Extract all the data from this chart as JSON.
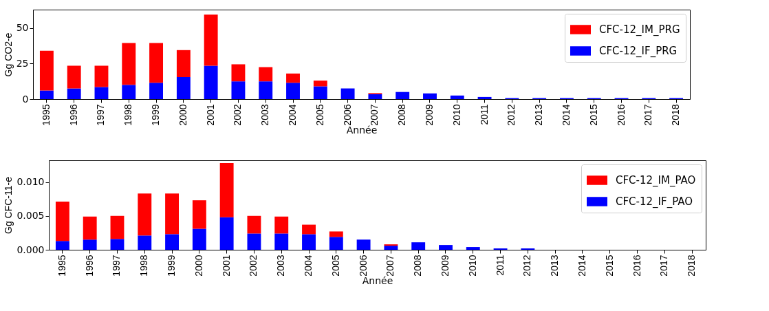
{
  "chart_data": [
    {
      "type": "bar",
      "stacked": true,
      "ylabel": "Gg CO2-e",
      "xlabel": "Année",
      "categories": [
        "1995",
        "1996",
        "1997",
        "1998",
        "1999",
        "2000",
        "2001",
        "2002",
        "2003",
        "2004",
        "2005",
        "2006",
        "2007",
        "2008",
        "2009",
        "2010",
        "2011",
        "2012",
        "2013",
        "2014",
        "2015",
        "2016",
        "2017",
        "2018"
      ],
      "series": [
        {
          "name": "CFC-12_IF_PRG",
          "color": "#0000ff",
          "values": [
            6,
            7.5,
            8.5,
            10,
            11.5,
            15.5,
            23.5,
            12.5,
            12.5,
            11.5,
            9,
            7.5,
            3.5,
            5,
            4,
            2.5,
            1.5,
            0.7,
            0.7,
            0.7,
            0.7,
            0.7,
            0.7,
            0.7
          ]
        },
        {
          "name": "CFC-12_IM_PRG",
          "color": "#ff0000",
          "values": [
            28,
            16,
            15,
            29.5,
            28,
            19,
            36,
            12,
            10,
            6.5,
            4,
            0,
            0.7,
            0,
            0,
            0,
            0,
            0,
            0,
            0,
            0,
            0,
            0,
            0
          ]
        }
      ],
      "ylim": [
        0,
        63
      ],
      "yticks": [
        0,
        25,
        50
      ],
      "grid": false,
      "legend": "top right"
    },
    {
      "type": "bar",
      "stacked": true,
      "ylabel": "Gg CFC-11-e",
      "xlabel": "Année",
      "categories": [
        "1995",
        "1996",
        "1997",
        "1998",
        "1999",
        "2000",
        "2001",
        "2002",
        "2003",
        "2004",
        "2005",
        "2006",
        "2007",
        "2008",
        "2009",
        "2010",
        "2011",
        "2012",
        "2013",
        "2014",
        "2015",
        "2016",
        "2017",
        "2018"
      ],
      "series": [
        {
          "name": "CFC-12_IF_PAO",
          "color": "#0000ff",
          "values": [
            0.0013,
            0.0015,
            0.0016,
            0.0021,
            0.0023,
            0.0031,
            0.0048,
            0.0024,
            0.0024,
            0.0023,
            0.0019,
            0.0015,
            0.0006,
            0.0011,
            0.0007,
            0.0004,
            0.0002,
            0.0002,
            0,
            0,
            0,
            0,
            0,
            0
          ]
        },
        {
          "name": "CFC-12_IM_PAO",
          "color": "#ff0000",
          "values": [
            0.0058,
            0.0034,
            0.0034,
            0.0062,
            0.006,
            0.0042,
            0.008,
            0.0026,
            0.0025,
            0.0014,
            0.0008,
            0,
            0.0002,
            0,
            0,
            0,
            0,
            0,
            0,
            0,
            0,
            0,
            0,
            0
          ]
        }
      ],
      "ylim": [
        0,
        0.0132
      ],
      "yticks": [
        {
          "value": 0,
          "label": "0.000"
        },
        {
          "value": 0.005,
          "label": "0.005"
        },
        {
          "value": 0.01,
          "label": "0.010"
        }
      ],
      "grid": false,
      "legend": "top right"
    }
  ]
}
